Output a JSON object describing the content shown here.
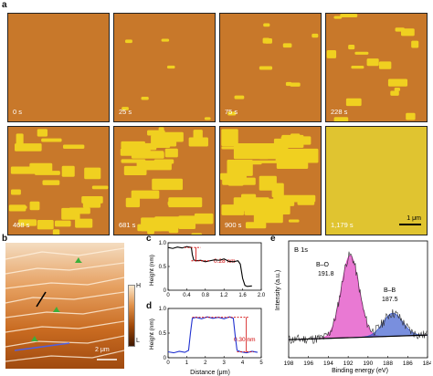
{
  "panel_a": {
    "label": "a",
    "timestamps": [
      "0 s",
      "25 s",
      "75 s",
      "228 s",
      "468 s",
      "681 s",
      "900 s",
      "1,179 s"
    ],
    "scalebar": "1 μm",
    "coverage": [
      0.0,
      0.08,
      0.18,
      0.34,
      0.55,
      0.7,
      0.88,
      1.0
    ]
  },
  "panel_b": {
    "label": "b",
    "scalebar": "2 μm",
    "colorbar_high": "H",
    "colorbar_low": "L"
  },
  "panel_c": {
    "label": "c",
    "ylabel": "Height (nm)",
    "annotation": "0.28 nm",
    "chart_data": {
      "type": "line",
      "xlim": [
        0,
        2.0
      ],
      "ylim": [
        0,
        1.0
      ],
      "xticks": [
        "0",
        "0.4",
        "0.8",
        "1.2",
        "1.6",
        "2.0"
      ],
      "yticks": [
        "0",
        "0.5",
        "1.0"
      ],
      "x": [
        0.0,
        0.1,
        0.2,
        0.3,
        0.4,
        0.5,
        0.52,
        0.55,
        0.6,
        0.7,
        0.8,
        0.9,
        1.0,
        1.1,
        1.2,
        1.3,
        1.4,
        1.5,
        1.55,
        1.6,
        1.65,
        1.7,
        1.8
      ],
      "y": [
        0.9,
        0.88,
        0.91,
        0.89,
        0.92,
        0.9,
        0.75,
        0.64,
        0.62,
        0.63,
        0.6,
        0.62,
        0.64,
        0.63,
        0.66,
        0.61,
        0.6,
        0.62,
        0.55,
        0.25,
        0.1,
        0.08,
        0.09
      ]
    }
  },
  "panel_d": {
    "label": "d",
    "ylabel": "Height (nm)",
    "xlabel": "Distance (μm)",
    "annotation": "0.30 nm",
    "chart_data": {
      "type": "line",
      "xlim": [
        0,
        5
      ],
      "ylim": [
        0,
        1.0
      ],
      "xticks": [
        "0",
        "1",
        "2",
        "3",
        "4",
        "5"
      ],
      "yticks": [
        "0",
        "0.5",
        "1.0"
      ],
      "x": [
        0.0,
        0.3,
        0.6,
        0.9,
        1.1,
        1.2,
        1.3,
        1.5,
        1.8,
        2.1,
        2.4,
        2.7,
        3.0,
        3.3,
        3.5,
        3.6,
        3.7,
        3.9,
        4.2,
        4.5,
        4.8
      ],
      "y": [
        0.12,
        0.1,
        0.13,
        0.11,
        0.15,
        0.5,
        0.8,
        0.82,
        0.79,
        0.83,
        0.8,
        0.82,
        0.79,
        0.83,
        0.8,
        0.45,
        0.15,
        0.12,
        0.1,
        0.13,
        0.11
      ]
    }
  },
  "panel_e": {
    "label": "e",
    "title": "B 1s",
    "ylabel": "Intensity (a.u.)",
    "xlabel": "Binding energy (eV)",
    "peak1_name": "B–O",
    "peak1_value": "191.8",
    "peak2_name": "B–B",
    "peak2_value": "187.5",
    "chart_data": {
      "type": "line",
      "xlim": [
        198,
        184
      ],
      "xticks": [
        "198",
        "196",
        "194",
        "192",
        "190",
        "188",
        "186",
        "184"
      ],
      "peaks": [
        {
          "name": "B–O",
          "center": 191.8,
          "height": 1.0,
          "width": 0.9,
          "color": "#e040c0"
        },
        {
          "name": "B–B",
          "center": 187.5,
          "height": 0.28,
          "width": 1.0,
          "color": "#4060d0"
        }
      ]
    }
  }
}
